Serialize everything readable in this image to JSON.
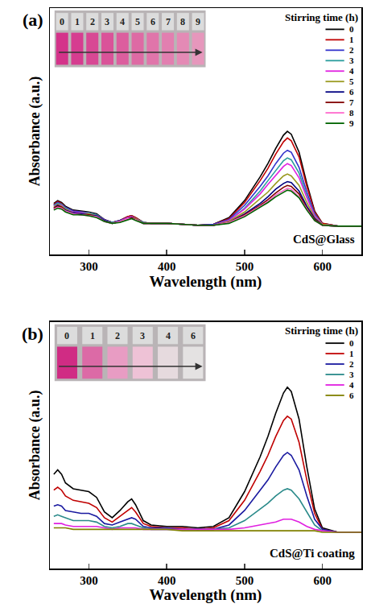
{
  "chart_data": [
    {
      "type": "line",
      "panel_label": "(a)",
      "annotation": "CdS@Glass",
      "x_label": "Wavelength (nm)",
      "y_label": "Absorbance (a.u.)",
      "legend_title": "Stirring time (h)",
      "legend": "upper right",
      "tick_labels": "x",
      "xlim": [
        250,
        650
      ],
      "xticks": [
        300,
        400,
        500,
        600
      ],
      "ylim": [
        -0.3,
        2.3
      ],
      "x": [
        255,
        260,
        265,
        270,
        280,
        290,
        300,
        310,
        320,
        330,
        340,
        350,
        355,
        360,
        370,
        380,
        400,
        420,
        440,
        460,
        480,
        500,
        520,
        530,
        540,
        550,
        555,
        560,
        570,
        580,
        590,
        600,
        620,
        650
      ],
      "series": [
        {
          "name": "0",
          "color": "#000000",
          "values": [
            0.24,
            0.27,
            0.25,
            0.21,
            0.17,
            0.16,
            0.15,
            0.13,
            0.07,
            0.04,
            0.06,
            0.1,
            0.11,
            0.09,
            0.04,
            0.03,
            0.03,
            0.02,
            0.01,
            0.02,
            0.09,
            0.27,
            0.52,
            0.66,
            0.82,
            0.96,
            1.0,
            0.97,
            0.78,
            0.45,
            0.16,
            0.03,
            0.0,
            0.0
          ]
        },
        {
          "name": "1",
          "color": "#c00000",
          "values": [
            0.23,
            0.26,
            0.24,
            0.2,
            0.16,
            0.15,
            0.14,
            0.12,
            0.07,
            0.04,
            0.06,
            0.1,
            0.11,
            0.09,
            0.04,
            0.03,
            0.03,
            0.02,
            0.01,
            0.02,
            0.08,
            0.25,
            0.48,
            0.61,
            0.76,
            0.89,
            0.93,
            0.9,
            0.73,
            0.42,
            0.15,
            0.03,
            0.0,
            0.0
          ]
        },
        {
          "name": "2",
          "color": "#3333cc",
          "values": [
            0.22,
            0.25,
            0.23,
            0.2,
            0.16,
            0.15,
            0.14,
            0.12,
            0.07,
            0.04,
            0.06,
            0.09,
            0.1,
            0.08,
            0.04,
            0.03,
            0.03,
            0.02,
            0.01,
            0.02,
            0.07,
            0.22,
            0.42,
            0.53,
            0.66,
            0.77,
            0.8,
            0.78,
            0.62,
            0.36,
            0.13,
            0.02,
            0.0,
            0.0
          ]
        },
        {
          "name": "3",
          "color": "#2a9d9d",
          "values": [
            0.22,
            0.24,
            0.23,
            0.19,
            0.15,
            0.14,
            0.14,
            0.12,
            0.06,
            0.04,
            0.05,
            0.09,
            0.1,
            0.08,
            0.04,
            0.03,
            0.03,
            0.02,
            0.01,
            0.01,
            0.06,
            0.19,
            0.37,
            0.48,
            0.59,
            0.69,
            0.72,
            0.7,
            0.56,
            0.32,
            0.12,
            0.02,
            0.0,
            0.0
          ]
        },
        {
          "name": "4",
          "color": "#e020e0",
          "values": [
            0.21,
            0.23,
            0.22,
            0.18,
            0.15,
            0.14,
            0.13,
            0.11,
            0.06,
            0.03,
            0.05,
            0.09,
            0.1,
            0.08,
            0.03,
            0.03,
            0.03,
            0.02,
            0.01,
            0.01,
            0.06,
            0.18,
            0.34,
            0.44,
            0.54,
            0.63,
            0.66,
            0.64,
            0.51,
            0.3,
            0.11,
            0.02,
            0.0,
            0.0
          ]
        },
        {
          "name": "5",
          "color": "#9a9a20",
          "values": [
            0.2,
            0.23,
            0.21,
            0.18,
            0.14,
            0.13,
            0.13,
            0.11,
            0.06,
            0.03,
            0.05,
            0.08,
            0.09,
            0.08,
            0.03,
            0.03,
            0.03,
            0.02,
            0.01,
            0.01,
            0.05,
            0.15,
            0.29,
            0.36,
            0.45,
            0.53,
            0.55,
            0.53,
            0.43,
            0.25,
            0.09,
            0.02,
            0.0,
            0.0
          ]
        },
        {
          "name": "6",
          "color": "#000080",
          "values": [
            0.19,
            0.22,
            0.2,
            0.17,
            0.14,
            0.13,
            0.12,
            0.11,
            0.06,
            0.03,
            0.05,
            0.08,
            0.09,
            0.07,
            0.03,
            0.03,
            0.03,
            0.02,
            0.01,
            0.01,
            0.04,
            0.13,
            0.24,
            0.31,
            0.39,
            0.45,
            0.47,
            0.46,
            0.37,
            0.21,
            0.08,
            0.01,
            0.0,
            0.0
          ]
        },
        {
          "name": "7",
          "color": "#800000",
          "values": [
            0.19,
            0.21,
            0.2,
            0.16,
            0.13,
            0.12,
            0.12,
            0.1,
            0.05,
            0.03,
            0.05,
            0.08,
            0.09,
            0.07,
            0.03,
            0.03,
            0.03,
            0.02,
            0.01,
            0.01,
            0.04,
            0.12,
            0.22,
            0.28,
            0.35,
            0.41,
            0.43,
            0.42,
            0.34,
            0.19,
            0.07,
            0.01,
            0.0,
            0.0
          ]
        },
        {
          "name": "8",
          "color": "#ff66cc",
          "values": [
            0.18,
            0.2,
            0.19,
            0.16,
            0.13,
            0.12,
            0.11,
            0.1,
            0.05,
            0.03,
            0.05,
            0.08,
            0.08,
            0.07,
            0.03,
            0.03,
            0.03,
            0.02,
            0.01,
            0.01,
            0.04,
            0.11,
            0.21,
            0.26,
            0.33,
            0.38,
            0.4,
            0.39,
            0.31,
            0.18,
            0.06,
            0.01,
            0.0,
            0.0
          ]
        },
        {
          "name": "9",
          "color": "#006400",
          "values": [
            0.17,
            0.19,
            0.18,
            0.15,
            0.12,
            0.12,
            0.11,
            0.09,
            0.05,
            0.03,
            0.04,
            0.07,
            0.08,
            0.06,
            0.03,
            0.03,
            0.03,
            0.02,
            0.01,
            0.01,
            0.03,
            0.1,
            0.2,
            0.25,
            0.31,
            0.36,
            0.38,
            0.37,
            0.3,
            0.17,
            0.06,
            0.01,
            0.0,
            0.0
          ]
        }
      ],
      "inset": {
        "labels": [
          "0",
          "1",
          "2",
          "3",
          "4",
          "5",
          "6",
          "7",
          "8",
          "9"
        ],
        "colors": [
          "#d4338a",
          "#d63d90",
          "#d84894",
          "#da5399",
          "#dc5e9e",
          "#de6aa4",
          "#e075aa",
          "#e27fb0",
          "#e48ab5",
          "#e697bc"
        ]
      }
    },
    {
      "type": "line",
      "panel_label": "(b)",
      "annotation": "CdS@Ti coating",
      "x_label": "Wavelength (nm)",
      "y_label": "Absorbance (a.u.)",
      "legend_title": "Stirring time (h)",
      "legend": "upper right",
      "tick_labels": "x",
      "xlim": [
        250,
        650
      ],
      "xticks": [
        300,
        400,
        500,
        600
      ],
      "ylim": [
        -0.25,
        1.45
      ],
      "x": [
        255,
        260,
        265,
        270,
        280,
        290,
        300,
        310,
        320,
        330,
        340,
        350,
        355,
        360,
        370,
        380,
        400,
        420,
        440,
        460,
        480,
        500,
        520,
        530,
        540,
        550,
        555,
        560,
        570,
        580,
        590,
        600,
        620,
        650
      ],
      "series": [
        {
          "name": "0",
          "color": "#000000",
          "values": [
            0.4,
            0.43,
            0.4,
            0.34,
            0.3,
            0.29,
            0.28,
            0.24,
            0.14,
            0.1,
            0.15,
            0.21,
            0.23,
            0.19,
            0.08,
            0.05,
            0.04,
            0.04,
            0.03,
            0.04,
            0.1,
            0.28,
            0.52,
            0.66,
            0.82,
            0.96,
            1.0,
            0.97,
            0.78,
            0.45,
            0.16,
            0.03,
            0.0,
            0.0
          ]
        },
        {
          "name": "1",
          "color": "#c00000",
          "values": [
            0.29,
            0.31,
            0.29,
            0.25,
            0.22,
            0.21,
            0.2,
            0.17,
            0.1,
            0.07,
            0.11,
            0.15,
            0.17,
            0.14,
            0.06,
            0.04,
            0.03,
            0.03,
            0.02,
            0.03,
            0.08,
            0.22,
            0.42,
            0.53,
            0.66,
            0.77,
            0.8,
            0.78,
            0.62,
            0.36,
            0.13,
            0.02,
            0.0,
            0.0
          ]
        },
        {
          "name": "2",
          "color": "#1a1aa0",
          "values": [
            0.18,
            0.19,
            0.18,
            0.15,
            0.14,
            0.13,
            0.13,
            0.11,
            0.06,
            0.05,
            0.07,
            0.09,
            0.1,
            0.09,
            0.04,
            0.03,
            0.03,
            0.02,
            0.02,
            0.02,
            0.05,
            0.15,
            0.29,
            0.36,
            0.45,
            0.53,
            0.55,
            0.53,
            0.43,
            0.25,
            0.09,
            0.02,
            0.0,
            0.0
          ]
        },
        {
          "name": "3",
          "color": "#2a8a8a",
          "values": [
            0.11,
            0.12,
            0.11,
            0.1,
            0.08,
            0.08,
            0.08,
            0.07,
            0.04,
            0.03,
            0.04,
            0.06,
            0.06,
            0.05,
            0.03,
            0.02,
            0.02,
            0.02,
            0.02,
            0.02,
            0.03,
            0.08,
            0.16,
            0.2,
            0.25,
            0.29,
            0.3,
            0.29,
            0.23,
            0.14,
            0.05,
            0.01,
            0.0,
            0.0
          ]
        },
        {
          "name": "4",
          "color": "#e020e0",
          "values": [
            0.06,
            0.06,
            0.06,
            0.05,
            0.04,
            0.04,
            0.04,
            0.04,
            0.03,
            0.02,
            0.03,
            0.03,
            0.03,
            0.03,
            0.02,
            0.02,
            0.02,
            0.02,
            0.02,
            0.02,
            0.02,
            0.03,
            0.05,
            0.06,
            0.07,
            0.09,
            0.09,
            0.09,
            0.07,
            0.04,
            0.02,
            0.01,
            0.0,
            0.0
          ]
        },
        {
          "name": "6",
          "color": "#808000",
          "values": [
            0.03,
            0.03,
            0.03,
            0.03,
            0.02,
            0.02,
            0.02,
            0.02,
            0.02,
            0.02,
            0.02,
            0.02,
            0.02,
            0.02,
            0.02,
            0.02,
            0.02,
            0.01,
            0.01,
            0.01,
            0.01,
            0.01,
            0.01,
            0.01,
            0.01,
            0.01,
            0.01,
            0.01,
            0.01,
            0.01,
            0.01,
            0.0,
            0.0,
            0.0
          ]
        }
      ],
      "inset": {
        "labels": [
          "0",
          "1",
          "2",
          "3",
          "4",
          "6"
        ],
        "colors": [
          "#d02c84",
          "#dc6aa6",
          "#e89cc3",
          "#eec2d6",
          "#e6dade",
          "#e4e2e2"
        ]
      }
    }
  ]
}
